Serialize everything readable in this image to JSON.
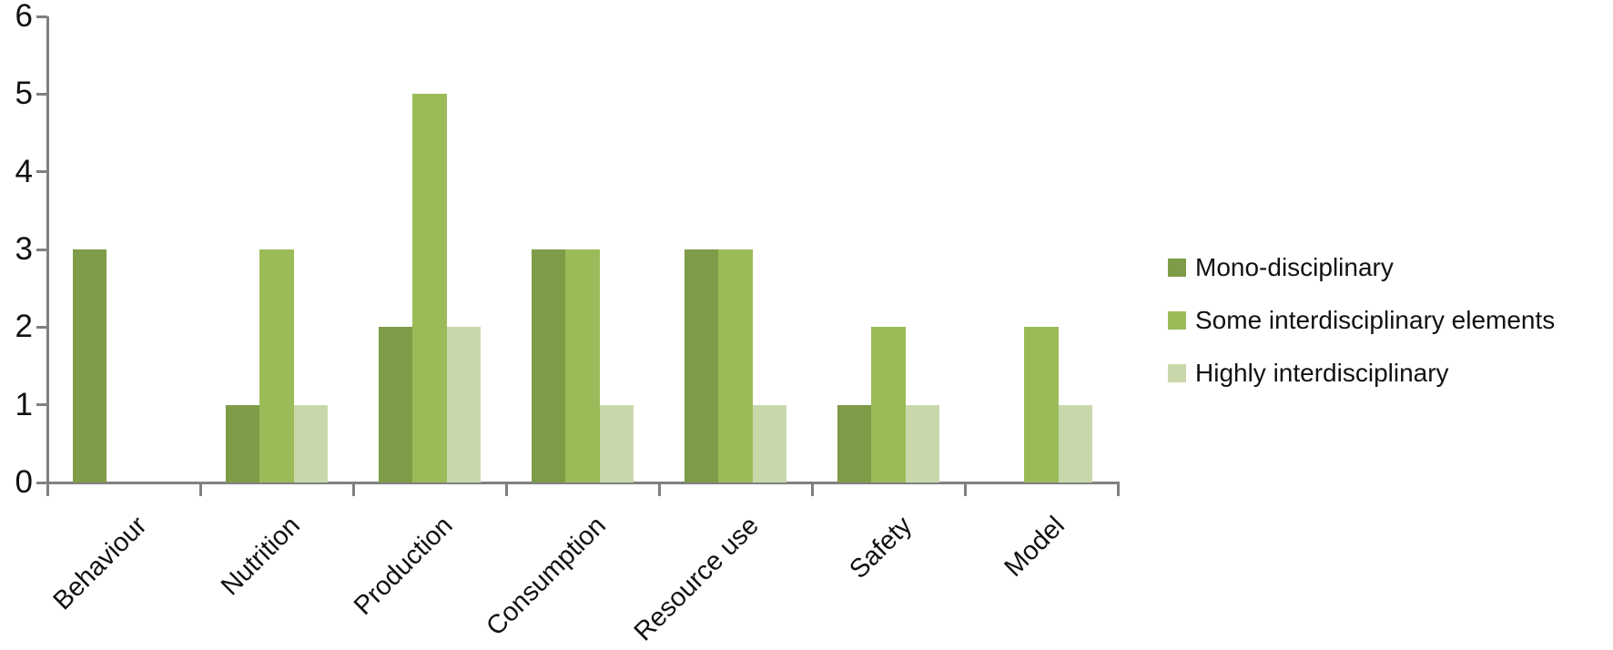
{
  "chart_data": {
    "type": "bar",
    "title": "",
    "xlabel": "",
    "ylabel": "",
    "categories": [
      "Behaviour",
      "Nutrition",
      "Production",
      "Consumption",
      "Resource use",
      "Safety",
      "Model"
    ],
    "series": [
      {
        "name": "Mono-disciplinary",
        "color": "#7E9C47",
        "values": [
          3,
          1,
          2,
          3,
          3,
          1,
          0
        ]
      },
      {
        "name": "Some interdisciplinary elements",
        "color": "#9ABB58",
        "values": [
          0,
          3,
          5,
          3,
          3,
          2,
          2
        ]
      },
      {
        "name": "Highly interdisciplinary",
        "color": "#C9D8AB",
        "values": [
          0,
          1,
          2,
          1,
          1,
          1,
          1
        ]
      }
    ],
    "ylim": [
      0,
      6
    ],
    "yticks": [
      0,
      1,
      2,
      3,
      4,
      5,
      6
    ],
    "grid": false,
    "legend_position": "right",
    "axis_color": "#808080",
    "text_color": "#111111",
    "background_color": "#FFFFFF"
  }
}
